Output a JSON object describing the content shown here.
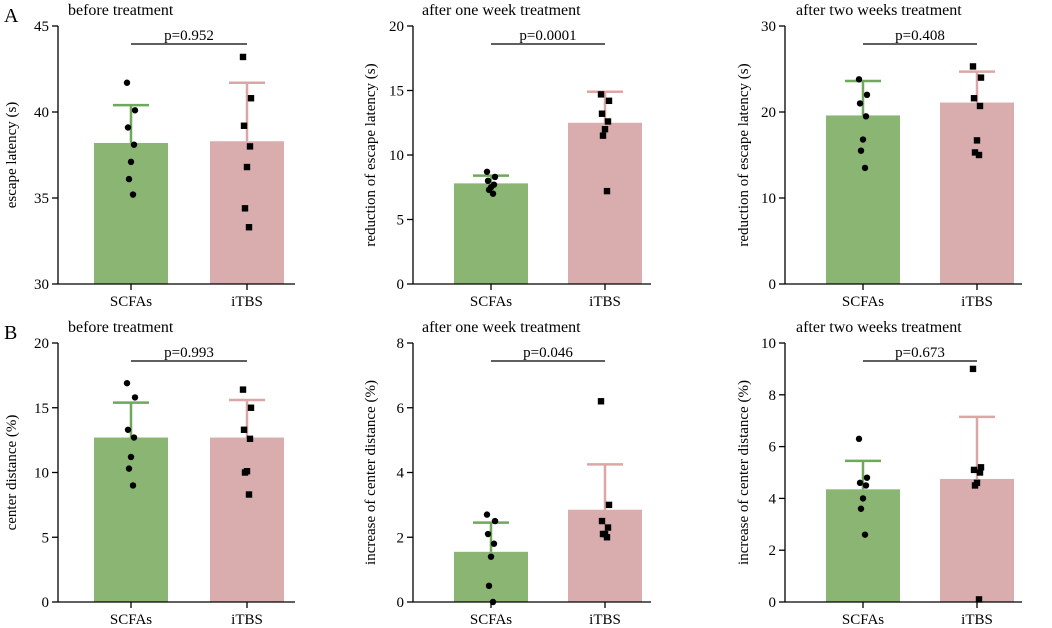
{
  "panel_labels": [
    "A",
    "B"
  ],
  "colors": {
    "scfas": "#8ab572",
    "scfas_err": "#6fa85a",
    "itbs": "#d9adad",
    "itbs_err": "#dca6a6",
    "point": "#000000"
  },
  "chart_data": [
    {
      "type": "bar",
      "panel": "A",
      "title": "before treatment",
      "ylabel": "escape latency (s)",
      "ylim": [
        30,
        45
      ],
      "yticks": [
        30,
        35,
        40,
        45
      ],
      "categories": [
        "SCFAs",
        "iTBS"
      ],
      "pvalue": "p=0.952",
      "series": [
        {
          "name": "SCFAs",
          "mean": 38.2,
          "sd": 2.2,
          "points": [
            41.7,
            40.1,
            39.1,
            38.1,
            37.1,
            36.1,
            35.2
          ],
          "marker": "circle"
        },
        {
          "name": "iTBS",
          "mean": 38.3,
          "sd": 3.4,
          "points": [
            43.2,
            40.8,
            39.2,
            38.0,
            36.8,
            34.4,
            33.3
          ],
          "marker": "square"
        }
      ]
    },
    {
      "type": "bar",
      "panel": "A",
      "title": "after one week treatment",
      "ylabel": "reduction of escape latency (s)",
      "ylim": [
        0,
        20
      ],
      "yticks": [
        0,
        5,
        10,
        15,
        20
      ],
      "categories": [
        "SCFAs",
        "iTBS"
      ],
      "pvalue": "p=0.0001",
      "series": [
        {
          "name": "SCFAs",
          "mean": 7.8,
          "sd": 0.6,
          "points": [
            8.7,
            8.3,
            8.0,
            7.7,
            7.5,
            7.3,
            7.0
          ],
          "marker": "circle"
        },
        {
          "name": "iTBS",
          "mean": 12.5,
          "sd": 2.4,
          "points": [
            14.7,
            14.2,
            13.2,
            12.6,
            12.0,
            11.5,
            7.2
          ],
          "marker": "square"
        }
      ]
    },
    {
      "type": "bar",
      "panel": "A",
      "title": "after two weeks treatment",
      "ylabel": "reduction of escape latency (s)",
      "ylim": [
        0,
        30
      ],
      "yticks": [
        0,
        10,
        20,
        30
      ],
      "categories": [
        "SCFAs",
        "iTBS"
      ],
      "pvalue": "p=0.408",
      "series": [
        {
          "name": "SCFAs",
          "mean": 19.6,
          "sd": 4.0,
          "points": [
            23.8,
            22.0,
            21.0,
            19.5,
            16.8,
            15.5,
            13.5
          ],
          "marker": "circle"
        },
        {
          "name": "iTBS",
          "mean": 21.1,
          "sd": 3.6,
          "points": [
            25.3,
            24.0,
            21.6,
            20.7,
            16.7,
            15.3,
            15.0
          ],
          "marker": "square"
        }
      ]
    },
    {
      "type": "bar",
      "panel": "B",
      "title": "before treatment",
      "ylabel": "center distance (%)",
      "ylim": [
        0,
        20
      ],
      "yticks": [
        0,
        5,
        10,
        15,
        20
      ],
      "categories": [
        "SCFAs",
        "iTBS"
      ],
      "pvalue": "p=0.993",
      "series": [
        {
          "name": "SCFAs",
          "mean": 12.7,
          "sd": 2.7,
          "points": [
            16.9,
            15.8,
            13.3,
            12.7,
            11.2,
            10.3,
            9.0
          ],
          "marker": "circle"
        },
        {
          "name": "iTBS",
          "mean": 12.7,
          "sd": 2.9,
          "points": [
            16.4,
            15.0,
            13.3,
            12.6,
            10.1,
            10.0,
            8.3
          ],
          "marker": "square"
        }
      ]
    },
    {
      "type": "bar",
      "panel": "B",
      "title": "after one week treatment",
      "ylabel": "increase of center distance (%)",
      "ylim": [
        0,
        8
      ],
      "yticks": [
        0,
        2,
        4,
        6,
        8
      ],
      "categories": [
        "SCFAs",
        "iTBS"
      ],
      "pvalue": "p=0.046",
      "series": [
        {
          "name": "SCFAs",
          "mean": 1.55,
          "sd": 0.9,
          "points": [
            2.7,
            2.5,
            2.1,
            1.8,
            1.4,
            0.5,
            0.0
          ],
          "marker": "circle"
        },
        {
          "name": "iTBS",
          "mean": 2.85,
          "sd": 1.4,
          "points": [
            6.2,
            3.0,
            2.5,
            2.3,
            2.1,
            2.1,
            2.0
          ],
          "marker": "square"
        }
      ]
    },
    {
      "type": "bar",
      "panel": "B",
      "title": "after two weeks treatment",
      "ylabel": "increase of center distance (%)",
      "ylim": [
        0,
        10
      ],
      "yticks": [
        0,
        2,
        4,
        6,
        8,
        10
      ],
      "categories": [
        "SCFAs",
        "iTBS"
      ],
      "pvalue": "p=0.673",
      "series": [
        {
          "name": "SCFAs",
          "mean": 4.35,
          "sd": 1.1,
          "points": [
            6.3,
            4.8,
            4.6,
            4.5,
            4.0,
            3.6,
            2.6
          ],
          "marker": "circle"
        },
        {
          "name": "iTBS",
          "mean": 4.75,
          "sd": 2.4,
          "points": [
            9.0,
            5.2,
            5.1,
            5.0,
            4.6,
            4.5,
            0.1
          ],
          "marker": "square"
        }
      ]
    }
  ]
}
